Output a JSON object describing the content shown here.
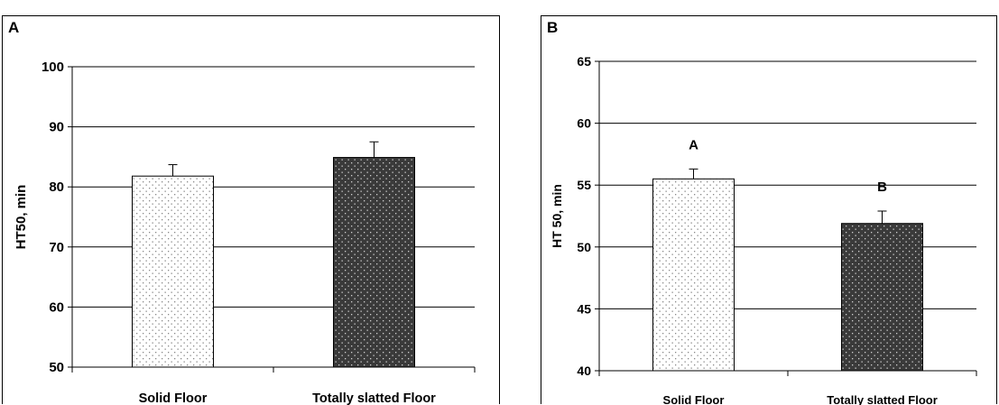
{
  "chart_data": [
    {
      "panel": "A",
      "type": "bar",
      "categories": [
        "Solid Floor",
        "Totally slatted Floor"
      ],
      "values": [
        81.8,
        84.9
      ],
      "errors": [
        1.9,
        2.6
      ],
      "patterns": [
        "light-dotted",
        "dark-dotted"
      ],
      "ylabel": "HT50, min",
      "ylim": [
        50,
        100
      ],
      "yticks": [
        50,
        60,
        70,
        80,
        90,
        100
      ],
      "grid": true,
      "bar_labels": []
    },
    {
      "panel": "B",
      "type": "bar",
      "categories": [
        "Solid Floor",
        "Totally slatted Floor"
      ],
      "values": [
        55.5,
        51.9
      ],
      "errors": [
        0.8,
        1.0
      ],
      "patterns": [
        "light-dotted",
        "dark-dotted"
      ],
      "ylabel": "HT 50, min",
      "ylim": [
        40,
        65
      ],
      "yticks": [
        40,
        45,
        50,
        55,
        60,
        65
      ],
      "grid": true,
      "bar_labels": [
        "A",
        "B"
      ]
    }
  ],
  "colors": {
    "light_bar_fill": "#ffffff",
    "light_bar_dots": "#888888",
    "dark_bar_fill": "#3a3a3a",
    "dark_bar_dots": "#d0d0d0",
    "axis": "#000000",
    "grid": "#000000"
  }
}
